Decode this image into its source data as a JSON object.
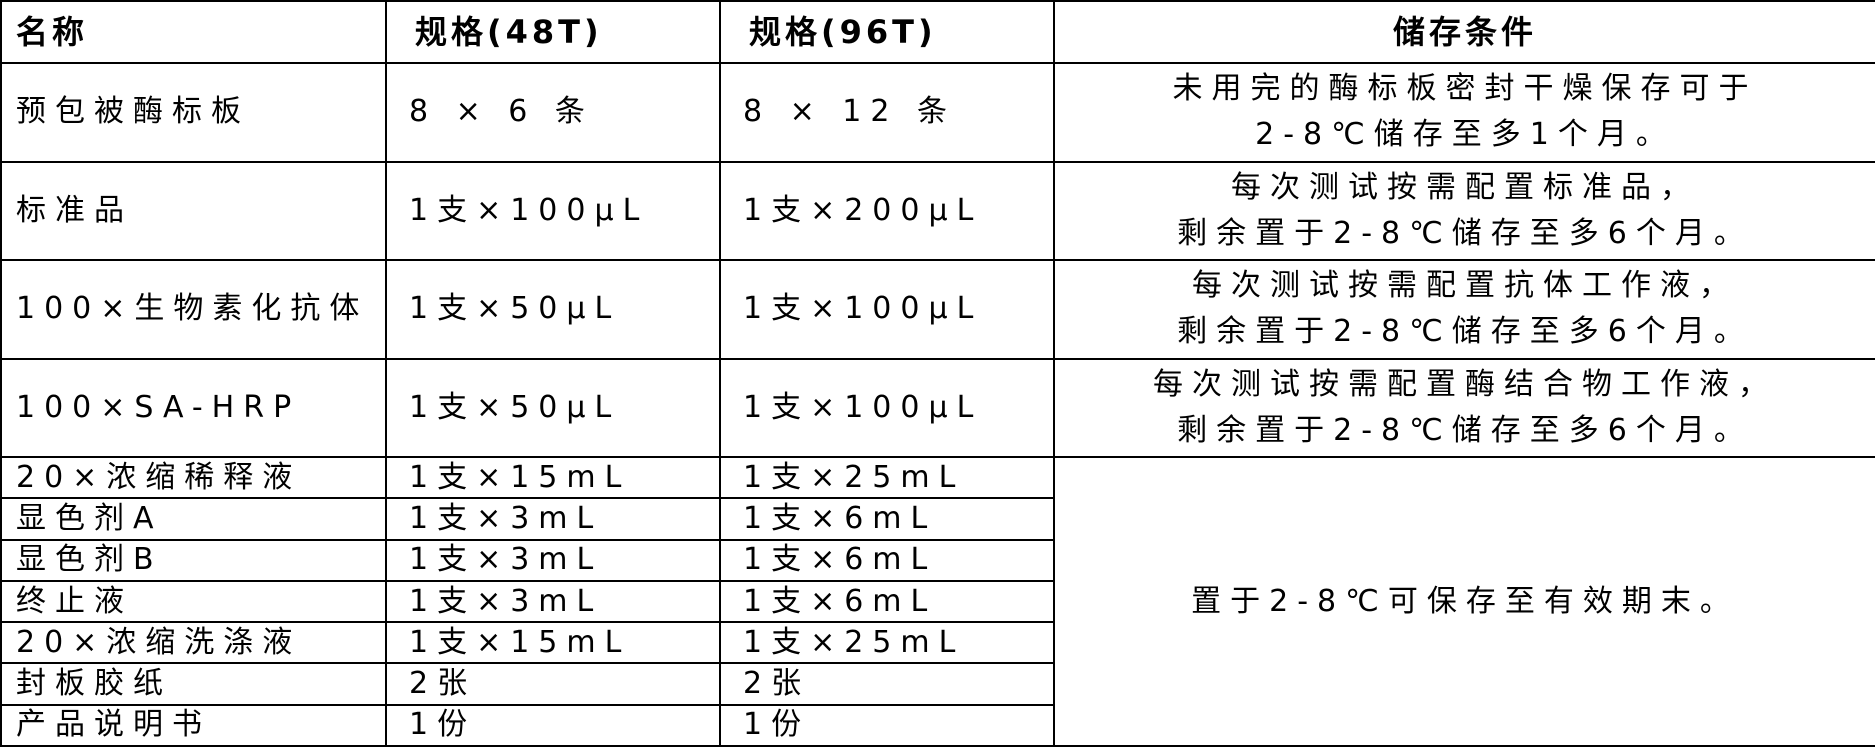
{
  "table": {
    "headers": [
      "名称",
      "规格(48T)",
      "规格(96T)",
      "储存条件"
    ],
    "rows": [
      {
        "name": "预包被酶标板",
        "spec48": "8 × 6 条",
        "spec96": "8 × 12 条",
        "storage": [
          "未用完的酶标板密封干燥保存可于",
          "2-8℃储存至多1个月。"
        ]
      },
      {
        "name": "标准品",
        "spec48": "1支×100μL",
        "spec96": "1支×200μL",
        "storage": [
          "每次测试按需配置标准品，",
          "剩余置于2-8℃储存至多6个月。"
        ]
      },
      {
        "name": "100×生物素化抗体",
        "spec48": "1支×50μL",
        "spec96": "1支×100μL",
        "storage": [
          "每次测试按需配置抗体工作液，",
          "剩余置于2-8℃储存至多6个月。"
        ]
      },
      {
        "name": "100×SA-HRP",
        "spec48": "1支×50μL",
        "spec96": "1支×100μL",
        "storage": [
          "每次测试按需配置酶结合物工作液，",
          "剩余置于2-8℃储存至多6个月。"
        ]
      },
      {
        "name": "20×浓缩稀释液",
        "spec48": "1支×15mL",
        "spec96": "1支×25mL"
      },
      {
        "name": "显色剂A",
        "spec48": "1支×3mL",
        "spec96": "1支×6mL"
      },
      {
        "name": "显色剂B",
        "spec48": "1支×3mL",
        "spec96": "1支×6mL"
      },
      {
        "name": "终止液",
        "spec48": "1支×3mL",
        "spec96": "1支×6mL"
      },
      {
        "name": "20×浓缩洗涤液",
        "spec48": "1支×15mL",
        "spec96": "1支×25mL"
      },
      {
        "name": "封板胶纸",
        "spec48": "2张",
        "spec96": "2张"
      },
      {
        "name": "产品说明书",
        "spec48": "1份",
        "spec96": "1份"
      }
    ],
    "shared_storage": "置于2-8℃可保存至有效期末。"
  }
}
